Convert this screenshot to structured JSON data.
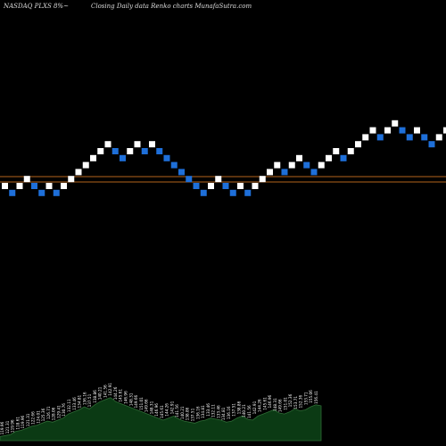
{
  "header": {
    "left_text": "NASDAQ PLXS 8%~",
    "right_text": "Closing Daily data Renko charts MunafaSutra.com"
  },
  "colors": {
    "background": "#000000",
    "up_brick": "#ffffff",
    "down_brick": "#1e6fd9",
    "reference_line": "#b5651d",
    "volume_fill": "#0b3a14",
    "volume_stroke": "#2e6b35"
  },
  "chart_data": {
    "type": "renko",
    "reference_levels": [
      "upper",
      "lower"
    ],
    "bricks": [
      {
        "dir": "up",
        "level": 0
      },
      {
        "dir": "down",
        "level": -1
      },
      {
        "dir": "up",
        "level": 0
      },
      {
        "dir": "up",
        "level": 1
      },
      {
        "dir": "down",
        "level": 0
      },
      {
        "dir": "down",
        "level": -1
      },
      {
        "dir": "up",
        "level": 0
      },
      {
        "dir": "down",
        "level": -1
      },
      {
        "dir": "up",
        "level": 0
      },
      {
        "dir": "up",
        "level": 1
      },
      {
        "dir": "up",
        "level": 2
      },
      {
        "dir": "up",
        "level": 3
      },
      {
        "dir": "up",
        "level": 4
      },
      {
        "dir": "up",
        "level": 5
      },
      {
        "dir": "up",
        "level": 6
      },
      {
        "dir": "down",
        "level": 5
      },
      {
        "dir": "down",
        "level": 4
      },
      {
        "dir": "up",
        "level": 5
      },
      {
        "dir": "up",
        "level": 6
      },
      {
        "dir": "down",
        "level": 5
      },
      {
        "dir": "up",
        "level": 6
      },
      {
        "dir": "down",
        "level": 5
      },
      {
        "dir": "down",
        "level": 4
      },
      {
        "dir": "down",
        "level": 3
      },
      {
        "dir": "down",
        "level": 2
      },
      {
        "dir": "down",
        "level": 1
      },
      {
        "dir": "down",
        "level": 0
      },
      {
        "dir": "down",
        "level": -1
      },
      {
        "dir": "up",
        "level": 0
      },
      {
        "dir": "up",
        "level": 1
      },
      {
        "dir": "down",
        "level": 0
      },
      {
        "dir": "down",
        "level": -1
      },
      {
        "dir": "up",
        "level": 0
      },
      {
        "dir": "down",
        "level": -1
      },
      {
        "dir": "up",
        "level": 0
      },
      {
        "dir": "up",
        "level": 1
      },
      {
        "dir": "up",
        "level": 2
      },
      {
        "dir": "up",
        "level": 3
      },
      {
        "dir": "down",
        "level": 2
      },
      {
        "dir": "up",
        "level": 3
      },
      {
        "dir": "up",
        "level": 4
      },
      {
        "dir": "down",
        "level": 3
      },
      {
        "dir": "down",
        "level": 2
      },
      {
        "dir": "up",
        "level": 3
      },
      {
        "dir": "up",
        "level": 4
      },
      {
        "dir": "up",
        "level": 5
      },
      {
        "dir": "down",
        "level": 4
      },
      {
        "dir": "up",
        "level": 5
      },
      {
        "dir": "up",
        "level": 6
      },
      {
        "dir": "up",
        "level": 7
      },
      {
        "dir": "up",
        "level": 8
      },
      {
        "dir": "down",
        "level": 7
      },
      {
        "dir": "up",
        "level": 8
      },
      {
        "dir": "up",
        "level": 9
      },
      {
        "dir": "down",
        "level": 8
      },
      {
        "dir": "down",
        "level": 7
      },
      {
        "dir": "up",
        "level": 8
      },
      {
        "dir": "down",
        "level": 7
      },
      {
        "dir": "down",
        "level": 6
      },
      {
        "dir": "up",
        "level": 7
      },
      {
        "dir": "up",
        "level": 8
      },
      {
        "dir": "up",
        "level": 9
      }
    ],
    "volume": [
      4,
      5,
      6,
      9,
      10,
      12,
      14,
      15,
      17,
      19,
      18,
      20,
      22,
      26,
      28,
      30,
      33,
      31,
      35,
      38,
      40,
      42,
      38,
      36,
      34,
      32,
      30,
      28,
      26,
      24,
      22,
      20,
      22,
      24,
      21,
      19,
      18,
      17,
      19,
      20,
      22,
      21,
      20,
      18,
      19,
      22,
      24,
      21,
      20,
      24,
      26,
      28,
      30,
      27,
      26,
      28,
      31,
      29,
      30,
      33,
      35,
      34
    ],
    "price_labels": [
      "119.96",
      "121.31",
      "119.96",
      "118.61",
      "119.96",
      "121.31",
      "122.66",
      "124.01",
      "125.36",
      "126.71",
      "128.06",
      "129.41",
      "130.76",
      "132.11",
      "133.46",
      "134.81",
      "136.16",
      "137.51",
      "138.86",
      "140.21",
      "141.56",
      "142.91",
      "144.26",
      "145.61",
      "146.96",
      "148.31",
      "149.66",
      "151.01",
      "149.66",
      "148.31",
      "146.96",
      "145.61",
      "144.26",
      "142.91",
      "141.56",
      "140.21",
      "138.86",
      "137.51",
      "136.16",
      "134.81",
      "133.46",
      "132.11",
      "133.46",
      "134.81",
      "136.16",
      "137.51",
      "138.86",
      "140.21",
      "141.56",
      "142.91",
      "144.26",
      "145.61",
      "146.96",
      "148.31",
      "149.66",
      "151.01",
      "152.36",
      "153.71",
      "152.36",
      "153.71",
      "155.06",
      "156.41"
    ]
  }
}
